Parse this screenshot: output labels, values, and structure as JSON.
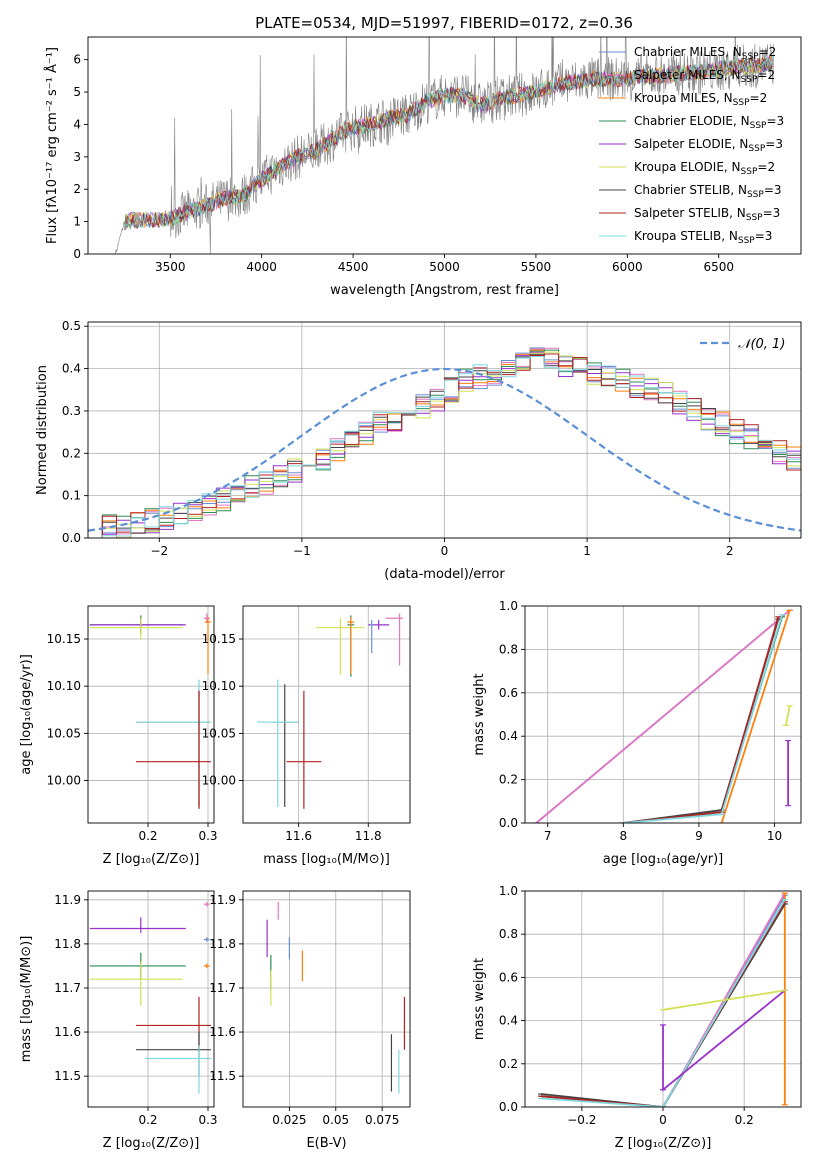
{
  "figure": {
    "title": "PLATE=0534, MJD=51997, FIBERID=0172, z=0.36"
  },
  "colors": {
    "Chabrier MILES": "#6a8fd6",
    "Salpeter MILES": "#e377c2",
    "Kroupa MILES": "#ff7f0e",
    "Chabrier ELODIE": "#2e8b57",
    "Salpeter ELODIE": "#9932cc",
    "Kroupa ELODIE": "#d4e157",
    "Chabrier STELIB": "#444444",
    "Salpeter STELIB": "#b22222",
    "Kroupa STELIB": "#7fd8e0",
    "data": "#808080",
    "gaussian": "#5b8fd6"
  },
  "chart_data": [
    {
      "type": "line",
      "title": "PLATE=0534, MJD=51997, FIBERID=0172, z=0.36",
      "xlabel": "wavelength [Angstrom, rest frame]",
      "ylabel": "Flux [fλ10⁻¹⁷ erg cm⁻² s⁻¹ Å⁻¹]",
      "xlim": [
        3050,
        6950
      ],
      "ylim": [
        0,
        6.7
      ],
      "xticks": [
        3500,
        4000,
        4500,
        5000,
        5500,
        6000,
        6500
      ],
      "yticks": [
        0,
        1,
        2,
        3,
        4,
        5,
        6
      ],
      "grid": false,
      "legend_loc": "upper right",
      "legend": [
        {
          "label": "Chabrier MILES, N",
          "sub": "SSP",
          "suffix": "=2"
        },
        {
          "label": "Salpeter MILES, N",
          "sub": "SSP",
          "suffix": "=2"
        },
        {
          "label": "Kroupa MILES, N",
          "sub": "SSP",
          "suffix": "=2"
        },
        {
          "label": "Chabrier ELODIE, N",
          "sub": "SSP",
          "suffix": "=3"
        },
        {
          "label": "Salpeter ELODIE, N",
          "sub": "SSP",
          "suffix": "=3"
        },
        {
          "label": "Kroupa ELODIE, N",
          "sub": "SSP",
          "suffix": "=2"
        },
        {
          "label": "Chabrier STELIB, N",
          "sub": "SSP",
          "suffix": "=3"
        },
        {
          "label": "Salpeter STELIB, N",
          "sub": "SSP",
          "suffix": "=3"
        },
        {
          "label": "Kroupa STELIB, N",
          "sub": "SSP",
          "suffix": "=3"
        }
      ],
      "continuum": {
        "x": [
          3200,
          3250,
          3300,
          3400,
          3500,
          3600,
          3700,
          3800,
          3900,
          4000,
          4100,
          4200,
          4300,
          4400,
          4500,
          4600,
          4700,
          4800,
          4900,
          5000,
          5100,
          5200,
          5300,
          5400,
          5500,
          5600,
          5700,
          5800,
          5900,
          6000,
          6100,
          6200,
          6300,
          6400,
          6500,
          6600,
          6700,
          6800
        ],
        "y": [
          0,
          1.0,
          1.05,
          1.05,
          1.1,
          1.3,
          1.5,
          1.7,
          1.8,
          2.3,
          2.7,
          3.0,
          3.2,
          3.6,
          3.9,
          4.0,
          4.2,
          4.3,
          4.7,
          4.9,
          4.9,
          4.6,
          4.8,
          4.9,
          5.0,
          5.2,
          5.3,
          5.4,
          5.4,
          5.4,
          5.5,
          5.5,
          5.6,
          5.6,
          5.7,
          5.8,
          5.8,
          5.9
        ]
      }
    },
    {
      "type": "line",
      "xlabel": "(data-model)/error",
      "ylabel": "Normed distribution",
      "xlim": [
        -2.5,
        2.5
      ],
      "ylim": [
        0,
        0.51
      ],
      "xticks": [
        -2,
        -1,
        0,
        1,
        2
      ],
      "yticks": [
        0.0,
        0.1,
        0.2,
        0.3,
        0.4,
        0.5
      ],
      "grid": true,
      "legend_loc": "upper right",
      "legend": [
        {
          "label": "𝒩(0, 1)"
        }
      ],
      "histogram_envelope": {
        "bin_width": 0.1,
        "x_start": -2.5,
        "values": [
          0.02,
          0.025,
          0.03,
          0.035,
          0.04,
          0.05,
          0.055,
          0.065,
          0.075,
          0.09,
          0.1,
          0.12,
          0.13,
          0.15,
          0.16,
          0.17,
          0.19,
          0.21,
          0.23,
          0.25,
          0.27,
          0.28,
          0.29,
          0.31,
          0.33,
          0.35,
          0.37,
          0.38,
          0.39,
          0.4,
          0.41,
          0.42,
          0.42,
          0.41,
          0.4,
          0.39,
          0.38,
          0.37,
          0.36,
          0.35,
          0.34,
          0.32,
          0.3,
          0.28,
          0.27,
          0.25,
          0.24,
          0.22,
          0.2,
          0.19,
          0.17,
          0.16,
          0.15,
          0.13,
          0.12,
          0.11,
          0.1,
          0.09,
          0.08,
          0.07,
          0.06,
          0.055,
          0.05,
          0.045,
          0.04,
          0.035,
          0.03,
          0.03,
          0.025,
          0.02
        ]
      }
    },
    {
      "type": "scatter",
      "xlabel": "Z [log₁₀(Z/Z⊙)]",
      "ylabel": "age  [log₁₀(age/yr)]",
      "xlim": [
        0.1,
        0.31
      ],
      "ylim": [
        9.955,
        10.185
      ],
      "xticks": [
        0.2,
        0.3
      ],
      "yticks": [
        10.0,
        10.05,
        10.1,
        10.15
      ],
      "grid": true,
      "points": [
        {
          "model": "Chabrier ELODIE",
          "x": 0.188,
          "y": 10.165,
          "xerr": [
            0.085,
            0.07
          ],
          "yerr": [
            0.01,
            0.01
          ]
        },
        {
          "model": "Salpeter ELODIE",
          "x": 0.188,
          "y": 10.165,
          "xerr": [
            0.085,
            0.075
          ],
          "yerr": [
            0.005,
            0.005
          ]
        },
        {
          "model": "Kroupa ELODIE",
          "x": 0.188,
          "y": 10.162,
          "xerr": [
            0.085,
            0.07
          ],
          "yerr": [
            0.012,
            0.01
          ]
        },
        {
          "model": "Chabrier STELIB",
          "x": 0.285,
          "y": 10.062,
          "xerr": [
            0.105,
            0.02
          ],
          "yerr": [
            0.09,
            0.035
          ]
        },
        {
          "model": "Kroupa STELIB",
          "x": 0.285,
          "y": 10.062,
          "xerr": [
            0.105,
            0.02
          ],
          "yerr": [
            0.09,
            0.045
          ]
        },
        {
          "model": "Salpeter STELIB",
          "x": 0.285,
          "y": 10.02,
          "xerr": [
            0.105,
            0.02
          ],
          "yerr": [
            0.05,
            0.075
          ]
        },
        {
          "model": "Salpeter MILES",
          "x": 0.298,
          "y": 10.172,
          "xerr": [
            0.005,
            0.005
          ],
          "yerr": [
            0.005,
            0.005
          ]
        },
        {
          "model": "Kroupa MILES",
          "x": 0.3,
          "y": 10.168,
          "xerr": [
            0.005,
            0.005
          ],
          "yerr": [
            0.055,
            0.005
          ]
        }
      ]
    },
    {
      "type": "scatter",
      "xlabel": "mass [log₁₀(M/M⊙)]",
      "ylabel": "",
      "xlim": [
        11.44,
        11.92
      ],
      "ylim": [
        9.955,
        10.185
      ],
      "xticks": [
        11.6,
        11.8
      ],
      "yticks": [
        10.0,
        10.05,
        10.1,
        10.15
      ],
      "grid": true,
      "points": [
        {
          "model": "Chabrier ELODIE",
          "x": 11.75,
          "y": 10.165,
          "xerr": [
            0.01,
            0.01
          ],
          "yerr": [
            0.055,
            0.01
          ]
        },
        {
          "model": "Salpeter ELODIE",
          "x": 11.83,
          "y": 10.165,
          "xerr": [
            0.03,
            0.03
          ],
          "yerr": [
            0.005,
            0.005
          ]
        },
        {
          "model": "Kroupa ELODIE",
          "x": 11.72,
          "y": 10.162,
          "xerr": [
            0.07,
            0.07
          ],
          "yerr": [
            0.05,
            0.01
          ]
        },
        {
          "model": "Chabrier STELIB",
          "x": 11.56,
          "y": 10.062,
          "xerr": [
            0.04,
            0.04
          ],
          "yerr": [
            0.09,
            0.04
          ]
        },
        {
          "model": "Kroupa STELIB",
          "x": 11.54,
          "y": 10.062,
          "xerr": [
            0.06,
            0.06
          ],
          "yerr": [
            0.09,
            0.045
          ]
        },
        {
          "model": "Salpeter STELIB",
          "x": 11.615,
          "y": 10.02,
          "xerr": [
            0.05,
            0.05
          ],
          "yerr": [
            0.05,
            0.075
          ]
        },
        {
          "model": "Salpeter MILES",
          "x": 11.89,
          "y": 10.172,
          "xerr": [
            0.04,
            0.01
          ],
          "yerr": [
            0.05,
            0.005
          ]
        },
        {
          "model": "Kroupa MILES",
          "x": 11.75,
          "y": 10.168,
          "xerr": [
            0.01,
            0.01
          ],
          "yerr": [
            0.055,
            0.005
          ]
        },
        {
          "model": "Chabrier MILES",
          "x": 11.81,
          "y": 10.165,
          "xerr": [
            0.005,
            0.005
          ],
          "yerr": [
            0.03,
            0.005
          ]
        }
      ]
    },
    {
      "type": "line",
      "xlabel": "age  [log₁₀(age/yr)]",
      "ylabel": "mass weight",
      "xlim": [
        6.7,
        10.35
      ],
      "ylim": [
        0,
        1.0
      ],
      "xticks": [
        7,
        8,
        9,
        10
      ],
      "yticks": [
        0.0,
        0.2,
        0.4,
        0.6,
        0.8,
        1.0
      ],
      "grid": true,
      "series": [
        {
          "model": "Chabrier MILES",
          "x": [
            6.85,
            10.2
          ],
          "y": [
            0.0,
            0.98
          ]
        },
        {
          "model": "Salpeter MILES",
          "x": [
            6.85,
            10.2
          ],
          "y": [
            0.0,
            0.98
          ]
        },
        {
          "model": "Kroupa MILES",
          "x": [
            9.3,
            10.2
          ],
          "y": [
            0.0,
            0.98
          ]
        },
        {
          "model": "Chabrier ELODIE",
          "x": [
            8.0,
            9.3,
            10.1
          ],
          "y": [
            0.0,
            0.05,
            0.95
          ]
        },
        {
          "model": "Chabrier STELIB",
          "x": [
            8.0,
            9.3,
            10.05
          ],
          "y": [
            0.0,
            0.06,
            0.94
          ]
        },
        {
          "model": "Salpeter STELIB",
          "x": [
            8.0,
            9.3,
            10.05
          ],
          "y": [
            0.0,
            0.05,
            0.95
          ]
        },
        {
          "model": "Kroupa STELIB",
          "x": [
            8.0,
            9.3,
            10.1
          ],
          "y": [
            0.0,
            0.04,
            0.96
          ]
        },
        {
          "model": "Salpeter ELODIE",
          "x": [
            10.18,
            10.18
          ],
          "y": [
            0.08,
            0.38
          ]
        },
        {
          "model": "Kroupa ELODIE",
          "x": [
            10.15,
            10.2
          ],
          "y": [
            0.45,
            0.54
          ]
        }
      ]
    },
    {
      "type": "scatter",
      "xlabel": "Z [log₁₀(Z/Z⊙)]",
      "ylabel": "mass [log₁₀(M/M⊙)]",
      "xlim": [
        0.1,
        0.31
      ],
      "ylim": [
        11.43,
        11.92
      ],
      "xticks": [
        0.2,
        0.3
      ],
      "yticks": [
        11.5,
        11.6,
        11.7,
        11.8,
        11.9
      ],
      "grid": true,
      "points": [
        {
          "model": "Salpeter ELODIE",
          "x": 0.188,
          "y": 11.835,
          "xerr": [
            0.085,
            0.075
          ],
          "yerr": [
            0.01,
            0.025
          ]
        },
        {
          "model": "Chabrier ELODIE",
          "x": 0.188,
          "y": 11.75,
          "xerr": [
            0.085,
            0.075
          ],
          "yerr": [
            0.03,
            0.03
          ]
        },
        {
          "model": "Kroupa ELODIE",
          "x": 0.188,
          "y": 11.72,
          "xerr": [
            0.085,
            0.07
          ],
          "yerr": [
            0.06,
            0.04
          ]
        },
        {
          "model": "Salpeter STELIB",
          "x": 0.285,
          "y": 11.615,
          "xerr": [
            0.105,
            0.02
          ],
          "yerr": [
            0.06,
            0.065
          ]
        },
        {
          "model": "Chabrier STELIB",
          "x": 0.285,
          "y": 11.56,
          "xerr": [
            0.105,
            0.02
          ],
          "yerr": [
            0.06,
            0.04
          ]
        },
        {
          "model": "Kroupa STELIB",
          "x": 0.285,
          "y": 11.54,
          "xerr": [
            0.09,
            0.02
          ],
          "yerr": [
            0.08,
            0.03
          ]
        },
        {
          "model": "Salpeter MILES",
          "x": 0.298,
          "y": 11.89,
          "xerr": [
            0.005,
            0.005
          ],
          "yerr": [
            0.005,
            0.005
          ]
        },
        {
          "model": "Chabrier MILES",
          "x": 0.298,
          "y": 11.81,
          "xerr": [
            0.005,
            0.005
          ],
          "yerr": [
            0.005,
            0.005
          ]
        },
        {
          "model": "Kroupa MILES",
          "x": 0.298,
          "y": 11.75,
          "xerr": [
            0.005,
            0.005
          ],
          "yerr": [
            0.005,
            0.005
          ]
        }
      ]
    },
    {
      "type": "scatter",
      "xlabel": "E(B-V)",
      "ylabel": "",
      "xlim": [
        0.0,
        0.09
      ],
      "ylim": [
        11.43,
        11.92
      ],
      "xticks": [
        0.025,
        0.05,
        0.075
      ],
      "yticks": [
        11.5,
        11.6,
        11.7,
        11.8,
        11.9
      ],
      "grid": true,
      "points": [
        {
          "model": "Salpeter ELODIE",
          "x": 0.013,
          "y": 11.815,
          "yerr": [
            0.045,
            0.04
          ]
        },
        {
          "model": "Salpeter MILES",
          "x": 0.019,
          "y": 11.875,
          "yerr": [
            0.02,
            0.02
          ]
        },
        {
          "model": "Chabrier ELODIE",
          "x": 0.015,
          "y": 11.735,
          "yerr": [
            0.04,
            0.04
          ]
        },
        {
          "model": "Kroupa ELODIE",
          "x": 0.015,
          "y": 11.7,
          "yerr": [
            0.04,
            0.04
          ]
        },
        {
          "model": "Chabrier MILES",
          "x": 0.025,
          "y": 11.79,
          "yerr": [
            0.025,
            0.025
          ]
        },
        {
          "model": "Kroupa MILES",
          "x": 0.032,
          "y": 11.75,
          "yerr": [
            0.035,
            0.035
          ]
        },
        {
          "model": "Chabrier STELIB",
          "x": 0.08,
          "y": 11.53,
          "yerr": [
            0.065,
            0.065
          ]
        },
        {
          "model": "Kroupa STELIB",
          "x": 0.084,
          "y": 11.51,
          "yerr": [
            0.05,
            0.05
          ]
        },
        {
          "model": "Salpeter STELIB",
          "x": 0.087,
          "y": 11.62,
          "yerr": [
            0.06,
            0.06
          ]
        }
      ]
    },
    {
      "type": "line",
      "xlabel": "Z [log₁₀(Z/Z⊙)]",
      "ylabel": "mass weight",
      "xlim": [
        -0.34,
        0.34
      ],
      "ylim": [
        0,
        1.0
      ],
      "xticks": [
        -0.2,
        0.0,
        0.2
      ],
      "yticks": [
        0.0,
        0.2,
        0.4,
        0.6,
        0.8,
        1.0
      ],
      "grid": true,
      "series": [
        {
          "model": "Chabrier MILES",
          "x": [
            0.0,
            0.3
          ],
          "y": [
            0.0,
            0.98
          ]
        },
        {
          "model": "Salpeter MILES",
          "x": [
            0.0,
            0.3
          ],
          "y": [
            0.0,
            0.99
          ]
        },
        {
          "model": "Kroupa MILES",
          "x": [
            0.3,
            0.3
          ],
          "y": [
            0.01,
            0.99
          ]
        },
        {
          "model": "Chabrier ELODIE",
          "x": [
            -0.3,
            0.0,
            0.3
          ],
          "y": [
            0.05,
            0.0,
            0.94
          ]
        },
        {
          "model": "Chabrier STELIB",
          "x": [
            -0.3,
            0.0,
            0.3
          ],
          "y": [
            0.06,
            0.0,
            0.94
          ]
        },
        {
          "model": "Salpeter STELIB",
          "x": [
            -0.3,
            0.0,
            0.3
          ],
          "y": [
            0.05,
            0.0,
            0.95
          ]
        },
        {
          "model": "Kroupa STELIB",
          "x": [
            -0.3,
            0.0,
            0.3
          ],
          "y": [
            0.04,
            0.0,
            0.96
          ]
        },
        {
          "model": "Salpeter ELODIE",
          "x": [
            0.0,
            0.0,
            0.3
          ],
          "y": [
            0.38,
            0.08,
            0.54
          ]
        },
        {
          "model": "Kroupa ELODIE",
          "x": [
            0.0,
            0.3
          ],
          "y": [
            0.45,
            0.54
          ]
        }
      ]
    }
  ]
}
